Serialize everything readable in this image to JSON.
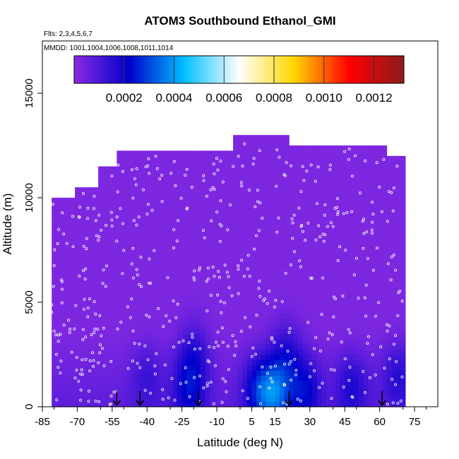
{
  "chart_data": {
    "type": "heatmap",
    "title": "ATOM3 Southbound Ethanol_GMI",
    "subtitle_flights": "Flts: 2,3,4,5,6,7",
    "subtitle_dates": "MMDD: 1001,1004,1006,1008,1011,1014",
    "xlabel": "Latitude (deg N)",
    "ylabel": "Altitude (m)",
    "xlim": [
      -85,
      85
    ],
    "ylim": [
      0,
      17500
    ],
    "x_ticks": [
      -85,
      -70,
      -55,
      -40,
      -25,
      -10,
      5,
      15,
      30,
      45,
      60,
      75
    ],
    "y_ticks": [
      0,
      5000,
      10000,
      15000
    ],
    "colorbar": {
      "min": 0.0,
      "max": 0.00132,
      "ticks": [
        "0.0002",
        "0.0004",
        "0.0006",
        "0.0008",
        "0.0010",
        "0.0012"
      ],
      "tick_values": [
        0.0002,
        0.0004,
        0.0006,
        0.0008,
        0.001,
        0.0012
      ],
      "colors": [
        "#8a2be2",
        "#0000cd",
        "#00bfff",
        "#ffffff",
        "#ffd700",
        "#ff0000",
        "#8b1a1a"
      ]
    },
    "background_value": 2e-05,
    "domain_top_altitude": [
      {
        "lat": -80,
        "alt": 10000
      },
      {
        "lat": -72,
        "alt": 10400
      },
      {
        "lat": -63,
        "alt": 11300
      },
      {
        "lat": -55,
        "alt": 12100
      },
      {
        "lat": -45,
        "alt": 12100
      },
      {
        "lat": -35,
        "alt": 12100
      },
      {
        "lat": -20,
        "alt": 12100
      },
      {
        "lat": -5,
        "alt": 12800
      },
      {
        "lat": 10,
        "alt": 12800
      },
      {
        "lat": 20,
        "alt": 12500
      },
      {
        "lat": 35,
        "alt": 12500
      },
      {
        "lat": 48,
        "alt": 12500
      },
      {
        "lat": 56,
        "alt": 12300
      },
      {
        "lat": 62,
        "alt": 11800
      },
      {
        "lat": 71,
        "alt": 11800
      }
    ],
    "domain_lat_range": [
      -81,
      71
    ],
    "enhancements": [
      {
        "lat": -22,
        "alt": 800,
        "value": 0.00015
      },
      {
        "lat": -20,
        "alt": 2500,
        "value": 0.00012
      },
      {
        "lat": 8,
        "alt": 900,
        "value": 0.00017
      },
      {
        "lat": 15,
        "alt": 600,
        "value": 0.00025
      },
      {
        "lat": 20,
        "alt": 2500,
        "value": 0.00013
      },
      {
        "lat": 28,
        "alt": 800,
        "value": 0.00016
      },
      {
        "lat": 48,
        "alt": 1000,
        "value": 0.00012
      },
      {
        "lat": 68,
        "alt": 1500,
        "value": 0.00011
      },
      {
        "lat": -40,
        "alt": 1500,
        "value": 8e-05
      }
    ],
    "arrows": [
      {
        "lat": -53,
        "label_alt": 0
      },
      {
        "lat": -43,
        "label_alt": 0
      },
      {
        "lat": -18,
        "label_alt": 0
      },
      {
        "lat": 21,
        "label_alt": 0
      },
      {
        "lat": 61,
        "label_alt": 0
      }
    ]
  }
}
